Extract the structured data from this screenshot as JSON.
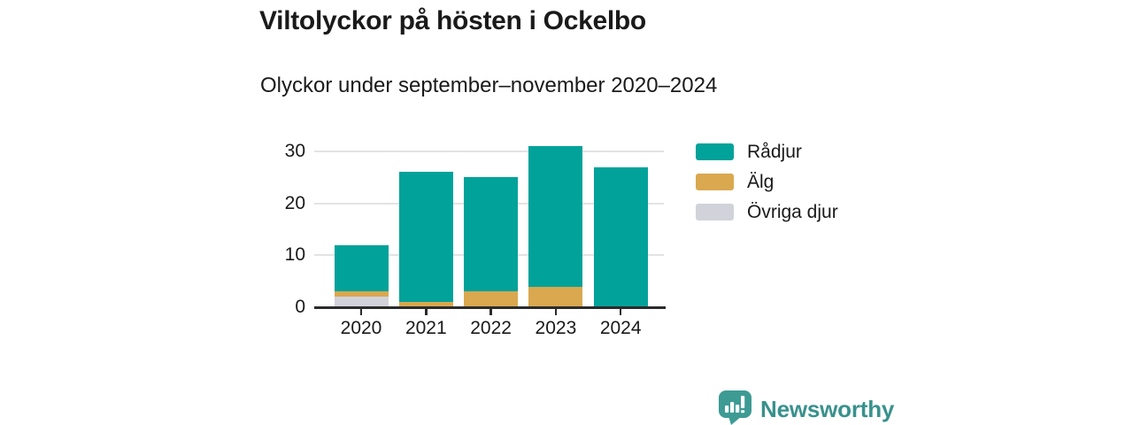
{
  "header": {
    "title": "Viltolyckor på hösten i Ockelbo",
    "subtitle": "Olyckor under september–november 2020–2024"
  },
  "footer": {
    "brand_name": "Newsworthy",
    "logo_icon": "newsworthy-speech-bubble-bar-chart-icon"
  },
  "colors": {
    "radjur_teal": "#00A29A",
    "alg_gold": "#D9A84F",
    "ovriga_gray": "#D2D2DA",
    "grid_line": "#E3E3E6",
    "axis_line": "#2B2B2B",
    "text": "#1A1A1A",
    "brand_teal": "#38918C",
    "logo_teal": "#3D9B94",
    "background": "#FFFFFF"
  },
  "chart_data": {
    "type": "bar",
    "stacked": true,
    "title": "Viltolyckor på hösten i Ockelbo",
    "subtitle": "Olyckor under september–november 2020–2024",
    "categories": [
      "2020",
      "2021",
      "2022",
      "2023",
      "2024"
    ],
    "series": [
      {
        "name": "Rådjur",
        "color": "#00A29A",
        "values": [
          9,
          25,
          22,
          27,
          27
        ]
      },
      {
        "name": "Älg",
        "color": "#D9A84F",
        "values": [
          1,
          1,
          3,
          4,
          0
        ]
      },
      {
        "name": "Övriga djur",
        "color": "#D2D2DA",
        "values": [
          2,
          0,
          0,
          0,
          0
        ]
      }
    ],
    "stack_order_bottom_to_top": [
      "Övriga djur",
      "Älg",
      "Rådjur"
    ],
    "totals": [
      12,
      26,
      25,
      31,
      27
    ],
    "xlabel": "",
    "ylabel": "",
    "ylim": [
      0,
      32
    ],
    "yticks": [
      0,
      10,
      20,
      30
    ],
    "grid": true,
    "legend_position": "right"
  }
}
